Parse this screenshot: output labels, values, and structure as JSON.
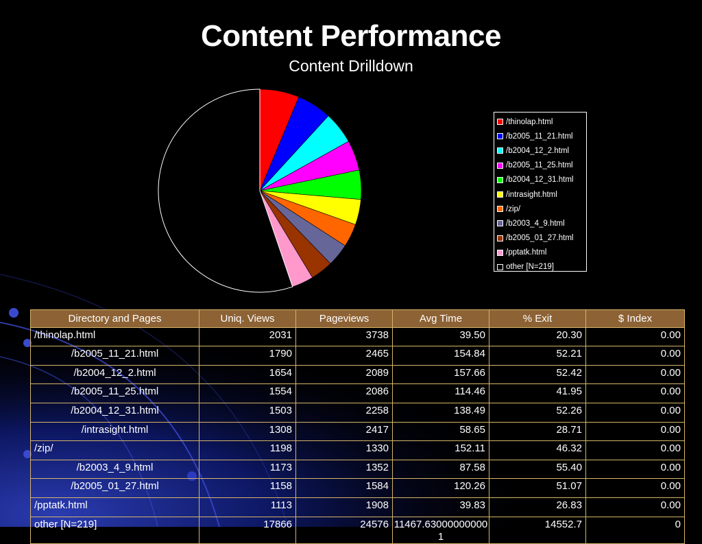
{
  "title": "Content Performance",
  "subtitle": "Content Drilldown",
  "chart_data": {
    "type": "pie",
    "title": "Content Performance",
    "subtitle": "Content Drilldown",
    "legend_position": "right",
    "labels": [
      "/thinolap.html",
      "/b2005_11_21.html",
      "/b2004_12_2.html",
      "/b2005_11_25.html",
      "/b2004_12_31.html",
      "/intrasight.html",
      "/zip/",
      "/b2003_4_9.html",
      "/b2005_01_27.html",
      "/pptatk.html",
      "other [N=219]"
    ],
    "values": [
      2031,
      1790,
      1654,
      1554,
      1503,
      1308,
      1198,
      1173,
      1158,
      1113,
      17866
    ],
    "colors": [
      "#ff0000",
      "#0000ff",
      "#00ffff",
      "#ff00ff",
      "#00ff00",
      "#ffff00",
      "#ff6600",
      "#666699",
      "#993300",
      "#ff99cc",
      "#000000"
    ]
  },
  "table": {
    "headers": [
      "Directory and Pages",
      "Uniq. Views",
      "Pageviews",
      "Avg Time",
      "% Exit",
      "$ Index"
    ],
    "rows": [
      [
        "/thinolap.html",
        "2031",
        "3738",
        "39.50",
        "20.30",
        "0.00"
      ],
      [
        "/b2005_11_21.html",
        "1790",
        "2465",
        "154.84",
        "52.21",
        "0.00"
      ],
      [
        "/b2004_12_2.html",
        "1654",
        "2089",
        "157.66",
        "52.42",
        "0.00"
      ],
      [
        "/b2005_11_25.html",
        "1554",
        "2086",
        "114.46",
        "41.95",
        "0.00"
      ],
      [
        "/b2004_12_31.html",
        "1503",
        "2258",
        "138.49",
        "52.26",
        "0.00"
      ],
      [
        "/intrasight.html",
        "1308",
        "2417",
        "58.65",
        "28.71",
        "0.00"
      ],
      [
        "/zip/",
        "1198",
        "1330",
        "152.11",
        "46.32",
        "0.00"
      ],
      [
        "/b2003_4_9.html",
        "1173",
        "1352",
        "87.58",
        "55.40",
        "0.00"
      ],
      [
        "/b2005_01_27.html",
        "1158",
        "1584",
        "120.26",
        "51.07",
        "0.00"
      ],
      [
        "/pptatk.html",
        "1113",
        "1908",
        "39.83",
        "26.83",
        "0.00"
      ],
      [
        "other [N=219]",
        "17866",
        "24576",
        "11467.630000000001",
        "14552.7",
        "0"
      ]
    ]
  }
}
